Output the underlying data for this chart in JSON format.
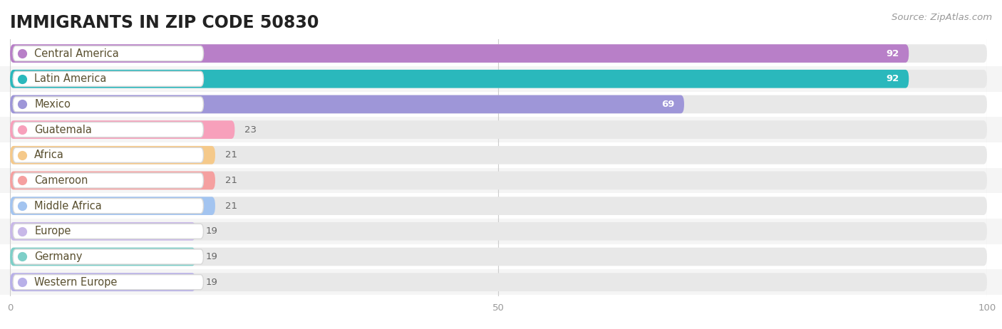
{
  "title": "IMMIGRANTS IN ZIP CODE 50830",
  "source": "Source: ZipAtlas.com",
  "categories": [
    "Central America",
    "Latin America",
    "Mexico",
    "Guatemala",
    "Africa",
    "Cameroon",
    "Middle Africa",
    "Europe",
    "Germany",
    "Western Europe"
  ],
  "values": [
    92,
    92,
    69,
    23,
    21,
    21,
    21,
    19,
    19,
    19
  ],
  "bar_colors": [
    "#b87fc8",
    "#2ab8bc",
    "#9e96d8",
    "#f7a0bb",
    "#f5c98a",
    "#f5a0a0",
    "#a3c4f0",
    "#c8b8e8",
    "#7dcfc8",
    "#b8b0e8"
  ],
  "xlim": [
    0,
    100
  ],
  "xticks": [
    0,
    50,
    100
  ],
  "background_color": "#ffffff",
  "row_bg_odd": "#f5f5f5",
  "row_bg_even": "#ffffff",
  "bar_track_color": "#e8e8e8",
  "title_fontsize": 17,
  "label_fontsize": 10.5,
  "value_fontsize": 9.5,
  "source_fontsize": 9.5
}
